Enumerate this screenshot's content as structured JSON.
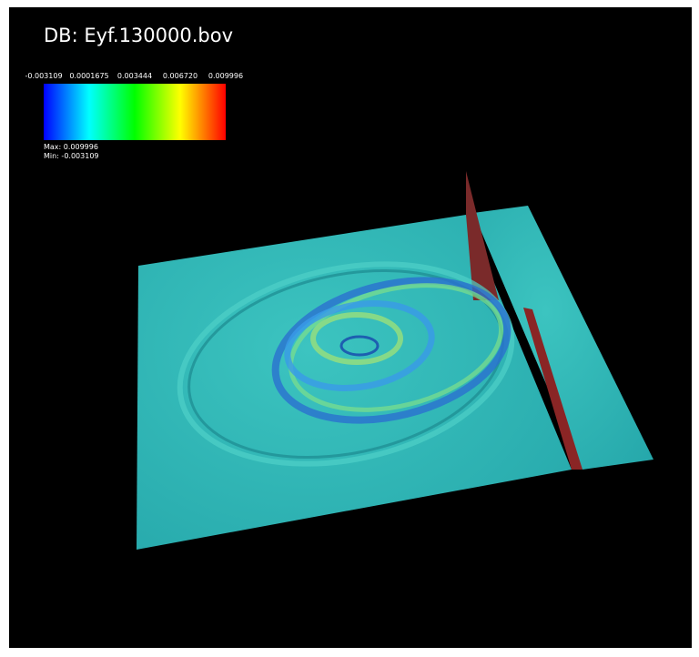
{
  "header": {
    "title": "DB: Eyf.130000.bov"
  },
  "legend": {
    "ticks": [
      "-0.003109",
      "0.0001675",
      "0.003444",
      "0.006720",
      "0.009996"
    ],
    "max": "Max:  0.009996",
    "min": "Min: -0.003109"
  }
}
